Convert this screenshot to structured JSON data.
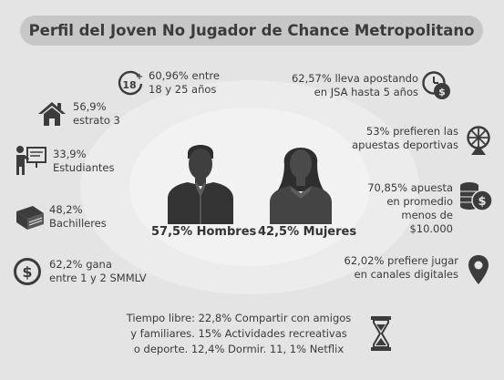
{
  "title": "Perfil del Joven No Jugador de Chance Metropolitano",
  "left": {
    "age": {
      "line1": "60,96% entre",
      "line2": "18 y 25 años",
      "icon": "age-18-plus-icon",
      "badge": "18"
    },
    "estrato": {
      "line1": "56,9%",
      "line2": "estrato 3",
      "icon": "house-icon"
    },
    "students": {
      "line1": "33,9%",
      "line2": "Estudiantes",
      "icon": "student-whiteboard-icon"
    },
    "bachilleres": {
      "line1": "48,2%",
      "line2": "Bachilleres",
      "icon": "book-icon"
    },
    "income": {
      "line1": "62,2% gana",
      "line2": "entre 1 y 2 SMMLV",
      "icon": "dollar-coin-icon"
    }
  },
  "right": {
    "betting": {
      "line1": "62,57% lleva apostando",
      "line2": "en JSA hasta 5 años",
      "icon": "clock-money-icon"
    },
    "sports": {
      "line1": "53% prefieren las",
      "line2": "apuestas deportivas",
      "icon": "lottery-wheel-icon"
    },
    "average": {
      "line1": "70,85% apuesta",
      "line2": "en promedio",
      "line3": "menos de",
      "line4": "$10.000",
      "icon": "coin-stack-icon"
    },
    "digital": {
      "line1": "62,02% prefiere jugar",
      "line2": "en canales digitales",
      "icon": "location-pin-icon"
    }
  },
  "center": {
    "men": "57,5% Hombres",
    "women": "42,5% Mujeres"
  },
  "free_time": {
    "line1": "Tiempo libre:  22,8%  Compartir con amigos",
    "line2": "y familiares. 15% Actividades recreativas",
    "line3": "o deporte. 12,4% Dormir.  11, 1% Netflix",
    "icon": "hourglass-icon"
  },
  "colors": {
    "background": "#e4e4e4",
    "title_pill": "#c7c7c7",
    "icon": "#3c3c3c",
    "text": "#3a3a3a"
  }
}
